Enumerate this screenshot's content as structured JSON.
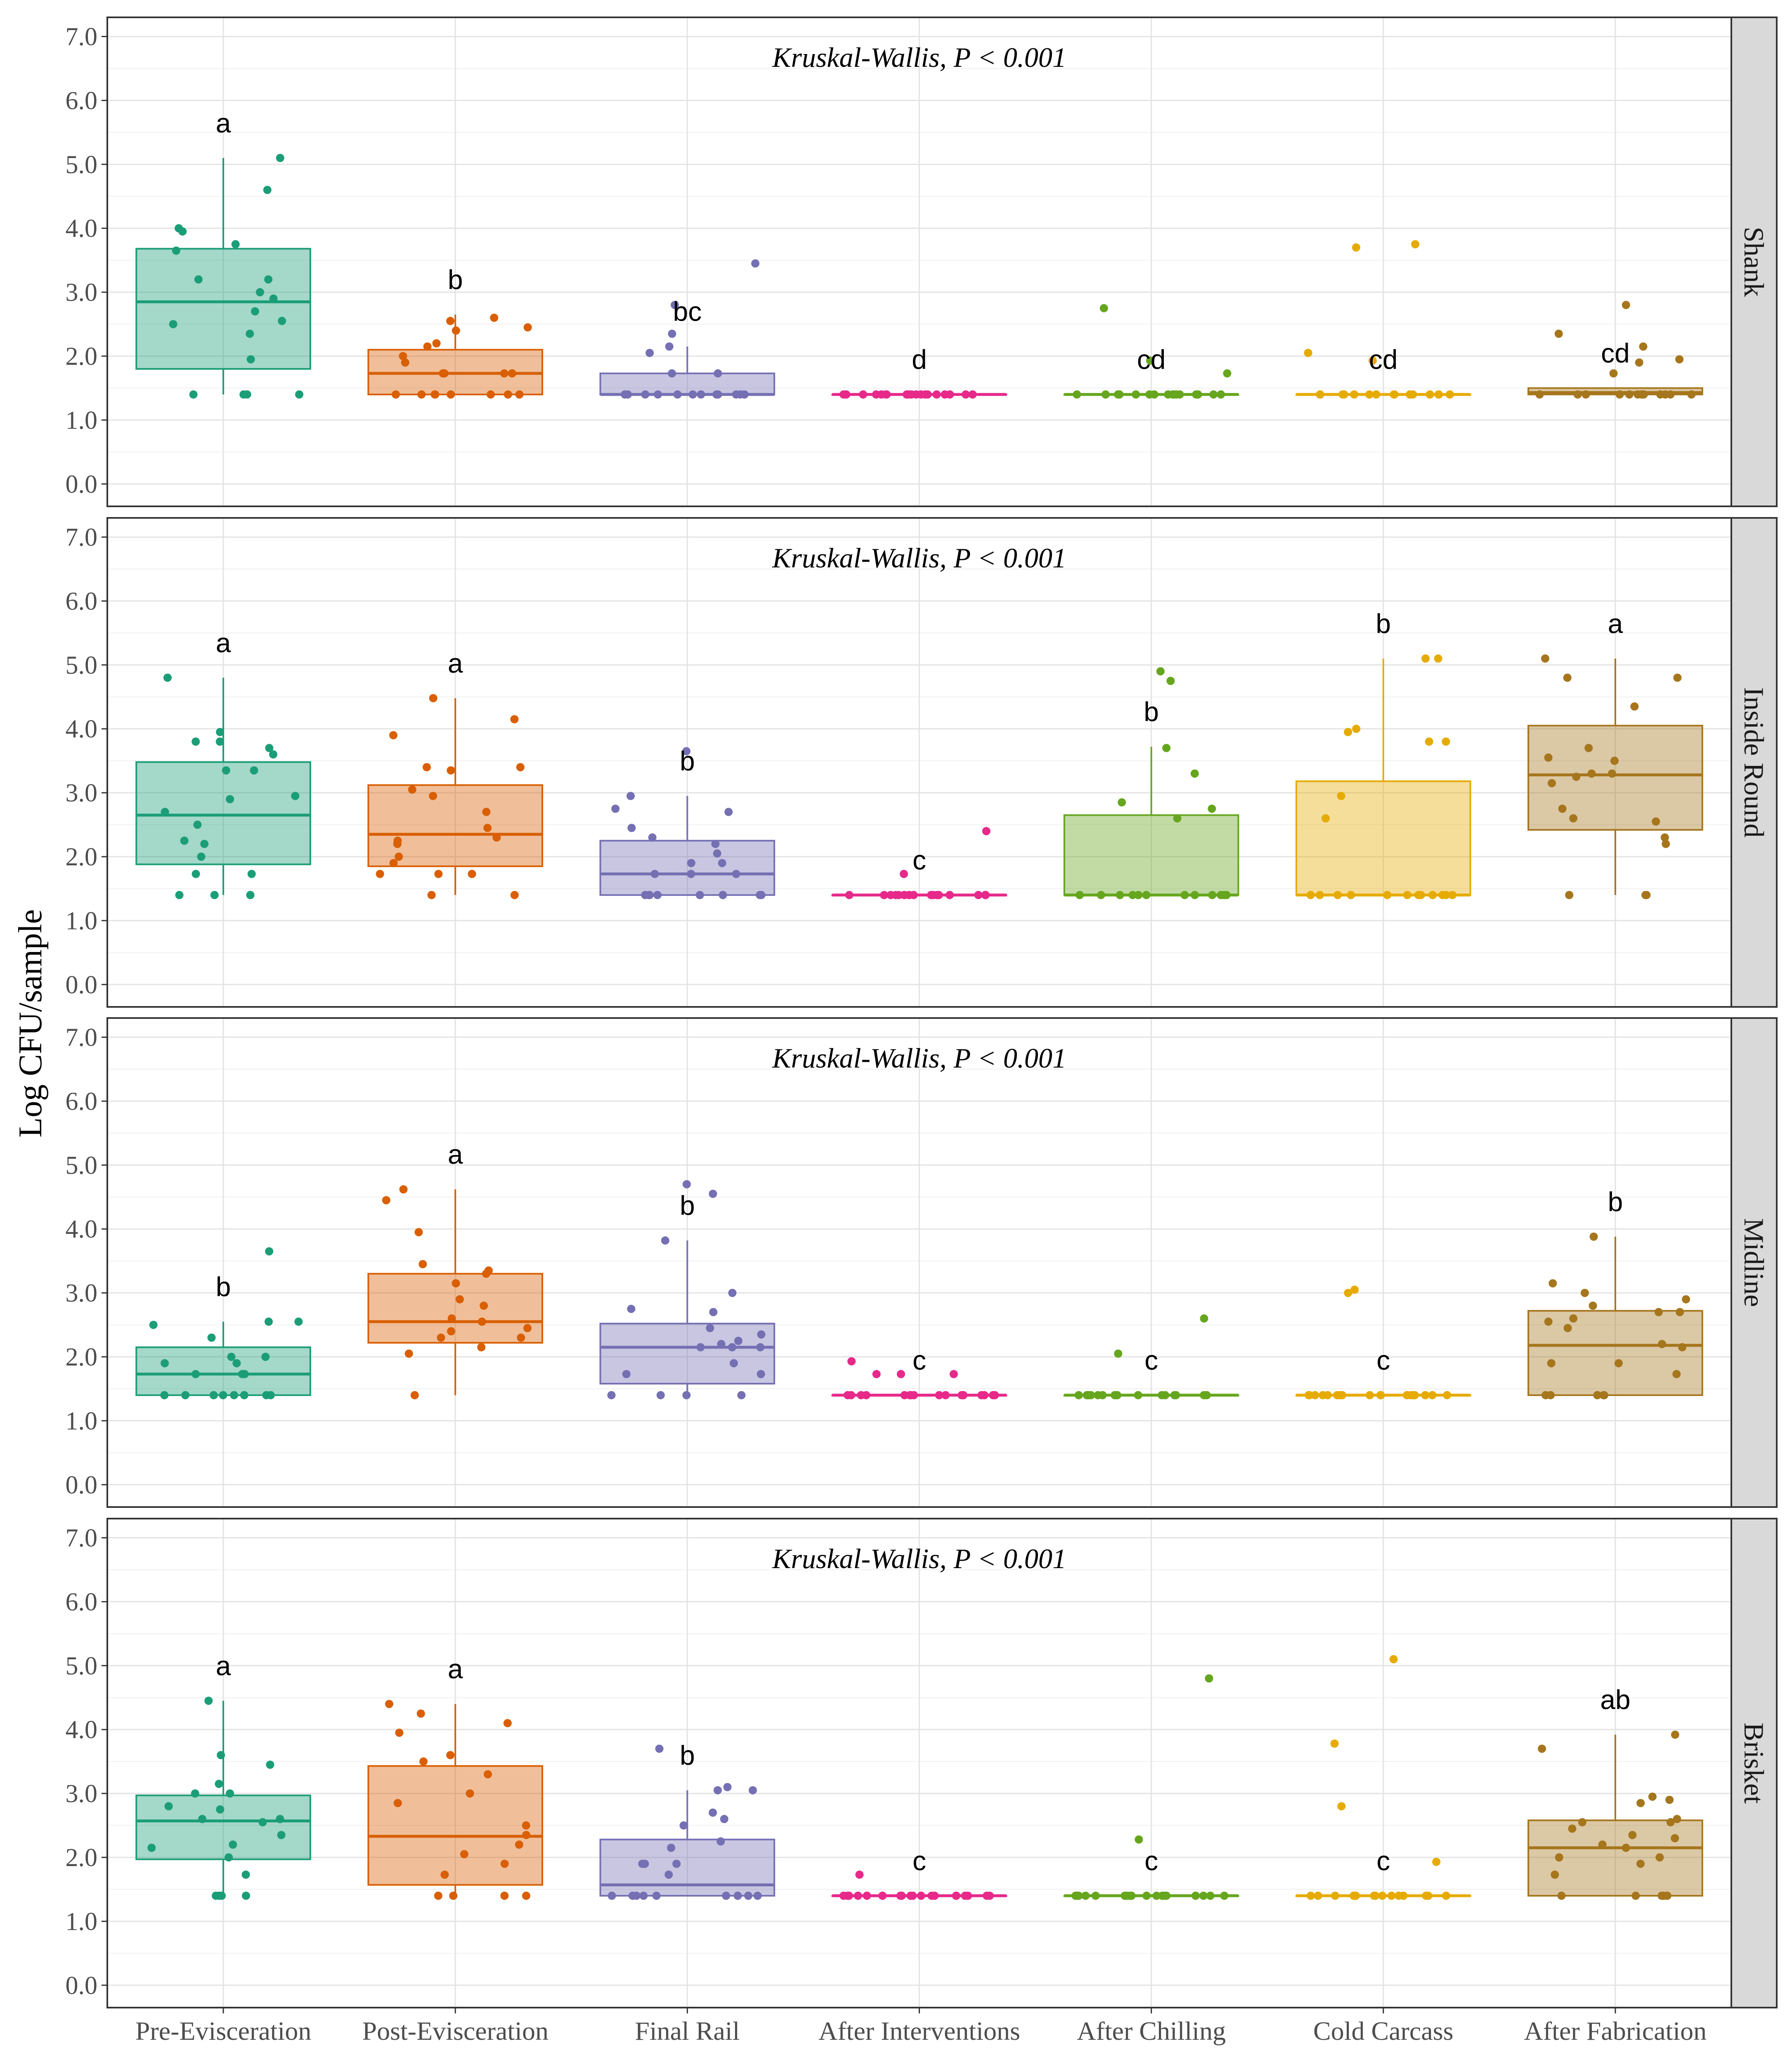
{
  "chart_data": {
    "type": "box",
    "ylabel": "Log CFU/sample",
    "xlabel": "",
    "ylim": [
      -0.35,
      7.3
    ],
    "yticks": [
      "0.0",
      "1.0",
      "2.0",
      "3.0",
      "4.0",
      "5.0",
      "6.0",
      "7.0"
    ],
    "categories": [
      "Pre-Evisceration",
      "Post-Evisceration",
      "Final Rail",
      "After Interventions",
      "After Chilling",
      "Cold Carcass",
      "After Fabrication"
    ],
    "colors": [
      "#1b9e77",
      "#d95f02",
      "#7570b3",
      "#e7298a",
      "#66a61e",
      "#e6ab02",
      "#a6761d"
    ],
    "panels": [
      {
        "name": "Shank",
        "test_label": "Kruskal-Wallis, P < 0.001",
        "groups": [
          {
            "q1": 1.8,
            "median": 2.85,
            "q3": 3.68,
            "whisker_low": 1.4,
            "whisker_high": 5.1,
            "letter": "a",
            "points": [
              1.4,
              1.4,
              1.4,
              1.4,
              1.95,
              2.35,
              2.5,
              2.55,
              2.7,
              2.9,
              3.0,
              3.2,
              3.2,
              3.65,
              3.75,
              3.95,
              4.0,
              4.6,
              5.1
            ]
          },
          {
            "q1": 1.4,
            "median": 1.73,
            "q3": 2.1,
            "whisker_low": 1.4,
            "whisker_high": 2.65,
            "letter": "b",
            "points": [
              1.4,
              1.4,
              1.4,
              1.4,
              1.4,
              1.4,
              1.4,
              1.4,
              1.73,
              1.73,
              1.73,
              1.73,
              1.9,
              2.0,
              2.15,
              2.2,
              2.4,
              2.45,
              2.55,
              2.6
            ]
          },
          {
            "q1": 1.4,
            "median": 1.4,
            "q3": 1.73,
            "whisker_low": 1.4,
            "whisker_high": 2.15,
            "letter": "bc",
            "points": [
              1.4,
              1.4,
              1.4,
              1.4,
              1.4,
              1.4,
              1.4,
              1.4,
              1.4,
              1.4,
              1.4,
              1.4,
              1.73,
              1.73,
              2.05,
              2.15,
              2.35,
              2.8,
              3.45
            ]
          },
          {
            "q1": 1.4,
            "median": 1.4,
            "q3": 1.4,
            "whisker_low": 1.4,
            "whisker_high": 1.4,
            "letter": "d",
            "points": [
              1.4,
              1.4,
              1.4,
              1.4,
              1.4,
              1.4,
              1.4,
              1.4,
              1.4,
              1.4,
              1.4,
              1.4,
              1.4,
              1.4,
              1.4,
              1.4,
              1.4,
              1.4,
              1.4,
              1.4
            ]
          },
          {
            "q1": 1.4,
            "median": 1.4,
            "q3": 1.4,
            "whisker_low": 1.4,
            "whisker_high": 1.4,
            "letter": "cd",
            "points": [
              1.4,
              1.4,
              1.4,
              1.4,
              1.4,
              1.4,
              1.4,
              1.4,
              1.4,
              1.4,
              1.4,
              1.4,
              1.4,
              1.4,
              1.4,
              1.4,
              1.73,
              1.93,
              2.75
            ]
          },
          {
            "q1": 1.4,
            "median": 1.4,
            "q3": 1.4,
            "whisker_low": 1.4,
            "whisker_high": 1.4,
            "letter": "cd",
            "points": [
              1.4,
              1.4,
              1.4,
              1.4,
              1.4,
              1.4,
              1.4,
              1.4,
              1.4,
              1.4,
              1.4,
              1.4,
              1.4,
              1.4,
              1.4,
              1.4,
              1.93,
              2.05,
              3.7,
              3.75
            ]
          },
          {
            "q1": 1.4,
            "median": 1.43,
            "q3": 1.5,
            "whisker_low": 1.4,
            "whisker_high": 1.5,
            "letter": "cd",
            "points": [
              1.4,
              1.4,
              1.4,
              1.4,
              1.4,
              1.4,
              1.4,
              1.4,
              1.4,
              1.4,
              1.4,
              1.4,
              1.73,
              1.9,
              1.95,
              2.15,
              2.35,
              2.8
            ]
          }
        ]
      },
      {
        "name": "Inside Round",
        "test_label": "Kruskal-Wallis, P < 0.001",
        "groups": [
          {
            "q1": 1.88,
            "median": 2.65,
            "q3": 3.48,
            "whisker_low": 1.4,
            "whisker_high": 4.8,
            "letter": "a",
            "points": [
              1.4,
              1.4,
              1.4,
              1.73,
              1.73,
              2.0,
              2.2,
              2.25,
              2.5,
              2.7,
              2.9,
              2.95,
              3.35,
              3.35,
              3.6,
              3.7,
              3.8,
              3.8,
              3.95,
              4.8
            ]
          },
          {
            "q1": 1.85,
            "median": 2.35,
            "q3": 3.12,
            "whisker_low": 1.4,
            "whisker_high": 4.48,
            "letter": "a",
            "points": [
              1.4,
              1.4,
              1.73,
              1.73,
              1.73,
              1.9,
              2.0,
              2.2,
              2.25,
              2.3,
              2.45,
              2.7,
              2.95,
              3.05,
              3.35,
              3.4,
              3.4,
              3.9,
              4.15,
              4.48
            ]
          },
          {
            "q1": 1.4,
            "median": 1.73,
            "q3": 2.25,
            "whisker_low": 1.4,
            "whisker_high": 2.95,
            "letter": "b",
            "points": [
              1.4,
              1.4,
              1.4,
              1.4,
              1.4,
              1.4,
              1.4,
              1.4,
              1.73,
              1.73,
              1.73,
              1.9,
              1.9,
              2.05,
              2.2,
              2.3,
              2.45,
              2.7,
              2.75,
              2.95,
              3.65
            ]
          },
          {
            "q1": 1.4,
            "median": 1.4,
            "q3": 1.4,
            "whisker_low": 1.4,
            "whisker_high": 1.4,
            "letter": "c",
            "points": [
              1.4,
              1.4,
              1.4,
              1.4,
              1.4,
              1.4,
              1.4,
              1.4,
              1.4,
              1.4,
              1.4,
              1.4,
              1.4,
              1.4,
              1.4,
              1.4,
              1.4,
              1.4,
              1.73,
              2.4
            ]
          },
          {
            "q1": 1.4,
            "median": 1.4,
            "q3": 2.65,
            "whisker_low": 1.4,
            "whisker_high": 3.72,
            "letter": "b",
            "points": [
              1.4,
              1.4,
              1.4,
              1.4,
              1.4,
              1.4,
              1.4,
              1.4,
              1.4,
              1.4,
              1.4,
              1.4,
              2.6,
              2.75,
              2.85,
              3.3,
              3.7,
              4.75,
              4.9
            ]
          },
          {
            "q1": 1.4,
            "median": 1.4,
            "q3": 3.18,
            "whisker_low": 1.4,
            "whisker_high": 5.1,
            "letter": "b",
            "points": [
              1.4,
              1.4,
              1.4,
              1.4,
              1.4,
              1.4,
              1.4,
              1.4,
              1.4,
              1.4,
              1.4,
              1.4,
              2.6,
              2.95,
              3.8,
              3.8,
              3.95,
              4.0,
              5.1,
              5.1
            ]
          },
          {
            "q1": 2.42,
            "median": 3.28,
            "q3": 4.05,
            "whisker_low": 1.4,
            "whisker_high": 5.1,
            "letter": "a",
            "points": [
              1.4,
              1.4,
              1.4,
              2.2,
              2.3,
              2.55,
              2.6,
              2.75,
              3.15,
              3.25,
              3.3,
              3.3,
              3.5,
              3.55,
              3.7,
              4.35,
              4.8,
              4.8,
              5.1
            ]
          }
        ]
      },
      {
        "name": "Midline",
        "test_label": "Kruskal-Wallis, P < 0.001",
        "groups": [
          {
            "q1": 1.4,
            "median": 1.73,
            "q3": 2.15,
            "whisker_low": 1.4,
            "whisker_high": 2.55,
            "letter": "b",
            "points": [
              1.4,
              1.4,
              1.4,
              1.4,
              1.4,
              1.4,
              1.4,
              1.4,
              1.73,
              1.73,
              1.73,
              1.9,
              1.9,
              2.0,
              2.0,
              2.3,
              2.5,
              2.55,
              2.55,
              3.65
            ]
          },
          {
            "q1": 2.22,
            "median": 2.55,
            "q3": 3.3,
            "whisker_low": 1.4,
            "whisker_high": 4.62,
            "letter": "a",
            "points": [
              1.4,
              2.05,
              2.15,
              2.3,
              2.3,
              2.4,
              2.45,
              2.55,
              2.6,
              2.8,
              2.9,
              3.15,
              3.3,
              3.35,
              3.45,
              3.95,
              4.45,
              4.62
            ]
          },
          {
            "q1": 1.58,
            "median": 2.15,
            "q3": 2.52,
            "whisker_low": 1.4,
            "whisker_high": 3.82,
            "letter": "b",
            "points": [
              1.4,
              1.4,
              1.4,
              1.4,
              1.73,
              1.73,
              1.9,
              2.15,
              2.15,
              2.15,
              2.2,
              2.25,
              2.35,
              2.45,
              2.7,
              2.75,
              3.0,
              3.82,
              4.55,
              4.7
            ]
          },
          {
            "q1": 1.4,
            "median": 1.4,
            "q3": 1.4,
            "whisker_low": 1.4,
            "whisker_high": 1.4,
            "letter": "c",
            "points": [
              1.4,
              1.4,
              1.4,
              1.4,
              1.4,
              1.4,
              1.4,
              1.4,
              1.4,
              1.4,
              1.4,
              1.4,
              1.4,
              1.4,
              1.4,
              1.4,
              1.73,
              1.73,
              1.73,
              1.93
            ]
          },
          {
            "q1": 1.4,
            "median": 1.4,
            "q3": 1.4,
            "whisker_low": 1.4,
            "whisker_high": 1.4,
            "letter": "c",
            "points": [
              1.4,
              1.4,
              1.4,
              1.4,
              1.4,
              1.4,
              1.4,
              1.4,
              1.4,
              1.4,
              1.4,
              1.4,
              1.4,
              1.4,
              1.4,
              1.4,
              1.4,
              2.05,
              2.6
            ]
          },
          {
            "q1": 1.4,
            "median": 1.4,
            "q3": 1.4,
            "whisker_low": 1.4,
            "whisker_high": 1.4,
            "letter": "c",
            "points": [
              1.4,
              1.4,
              1.4,
              1.4,
              1.4,
              1.4,
              1.4,
              1.4,
              1.4,
              1.4,
              1.4,
              1.4,
              1.4,
              1.4,
              1.4,
              1.4,
              1.4,
              1.4,
              3.0,
              3.05
            ]
          },
          {
            "q1": 1.4,
            "median": 2.18,
            "q3": 2.72,
            "whisker_low": 1.4,
            "whisker_high": 3.88,
            "letter": "b",
            "points": [
              1.4,
              1.4,
              1.4,
              1.4,
              1.4,
              1.73,
              1.9,
              1.9,
              2.15,
              2.2,
              2.45,
              2.55,
              2.6,
              2.7,
              2.7,
              2.8,
              2.9,
              3.0,
              3.15,
              3.88
            ]
          }
        ]
      },
      {
        "name": "Brisket",
        "test_label": "Kruskal-Wallis, P < 0.001",
        "groups": [
          {
            "q1": 1.97,
            "median": 2.57,
            "q3": 2.97,
            "whisker_low": 1.4,
            "whisker_high": 4.45,
            "letter": "a",
            "points": [
              1.4,
              1.4,
              1.4,
              1.4,
              1.73,
              2.0,
              2.15,
              2.2,
              2.35,
              2.55,
              2.6,
              2.6,
              2.75,
              2.8,
              3.0,
              3.0,
              3.15,
              3.45,
              3.6,
              4.45
            ]
          },
          {
            "q1": 1.57,
            "median": 2.33,
            "q3": 3.43,
            "whisker_low": 1.4,
            "whisker_high": 4.4,
            "letter": "a",
            "points": [
              1.4,
              1.4,
              1.4,
              1.4,
              1.73,
              1.9,
              2.05,
              2.2,
              2.35,
              2.5,
              2.85,
              3.0,
              3.3,
              3.5,
              3.6,
              3.95,
              4.1,
              4.25,
              4.4
            ]
          },
          {
            "q1": 1.4,
            "median": 1.57,
            "q3": 2.28,
            "whisker_low": 1.4,
            "whisker_high": 3.05,
            "letter": "b",
            "points": [
              1.4,
              1.4,
              1.4,
              1.4,
              1.4,
              1.4,
              1.4,
              1.4,
              1.4,
              1.73,
              1.9,
              1.9,
              1.9,
              2.15,
              2.25,
              2.5,
              2.6,
              2.7,
              3.05,
              3.05,
              3.1,
              3.7
            ]
          },
          {
            "q1": 1.4,
            "median": 1.4,
            "q3": 1.4,
            "whisker_low": 1.4,
            "whisker_high": 1.4,
            "letter": "c",
            "points": [
              1.4,
              1.4,
              1.4,
              1.4,
              1.4,
              1.4,
              1.4,
              1.4,
              1.4,
              1.4,
              1.4,
              1.4,
              1.4,
              1.4,
              1.4,
              1.4,
              1.4,
              1.4,
              1.4,
              1.73
            ]
          },
          {
            "q1": 1.4,
            "median": 1.4,
            "q3": 1.4,
            "whisker_low": 1.4,
            "whisker_high": 1.4,
            "letter": "c",
            "points": [
              1.4,
              1.4,
              1.4,
              1.4,
              1.4,
              1.4,
              1.4,
              1.4,
              1.4,
              1.4,
              1.4,
              1.4,
              1.4,
              1.4,
              1.4,
              1.4,
              1.4,
              1.4,
              2.28,
              4.8
            ]
          },
          {
            "q1": 1.4,
            "median": 1.4,
            "q3": 1.4,
            "whisker_low": 1.4,
            "whisker_high": 1.4,
            "letter": "c",
            "points": [
              1.4,
              1.4,
              1.4,
              1.4,
              1.4,
              1.4,
              1.4,
              1.4,
              1.4,
              1.4,
              1.4,
              1.4,
              1.4,
              1.4,
              1.4,
              1.4,
              1.93,
              2.8,
              3.78,
              5.1
            ]
          },
          {
            "q1": 1.4,
            "median": 2.15,
            "q3": 2.58,
            "whisker_low": 1.4,
            "whisker_high": 3.92,
            "letter": "ab",
            "points": [
              1.4,
              1.4,
              1.4,
              1.4,
              1.4,
              1.4,
              1.73,
              1.9,
              2.0,
              2.0,
              2.15,
              2.2,
              2.3,
              2.35,
              2.45,
              2.55,
              2.55,
              2.6,
              2.85,
              2.9,
              2.95,
              3.7,
              3.92
            ]
          }
        ]
      }
    ]
  }
}
